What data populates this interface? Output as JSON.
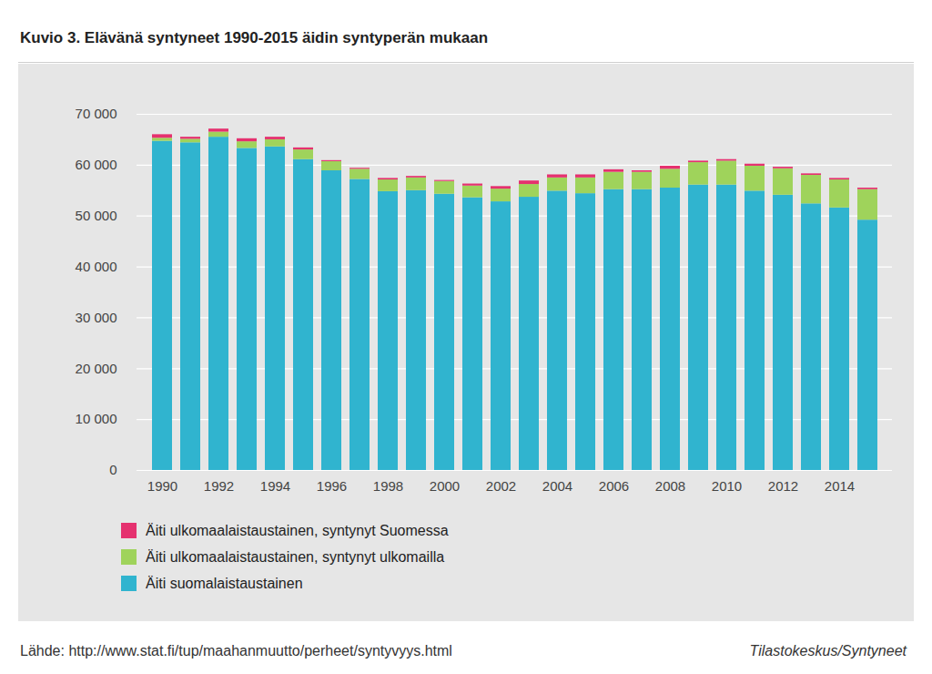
{
  "chart_data": {
    "type": "bar",
    "title": "Kuvio 3. Elävänä syntyneet 1990-2015 äidin syntyperän mukaan",
    "categories": [
      "1990",
      null,
      "1992",
      null,
      "1994",
      null,
      "1996",
      null,
      "1998",
      null,
      "2000",
      null,
      "2002",
      null,
      "2004",
      null,
      "2006",
      null,
      "2008",
      null,
      "2010",
      null,
      "2012",
      null,
      "2014",
      null
    ],
    "series": [
      {
        "name": "Äiti ulkomaalaistaustainen, syntynyt Suomessa",
        "color": "#e5316f",
        "values": [
          700,
          400,
          600,
          600,
          500,
          400,
          200,
          200,
          300,
          300,
          200,
          400,
          500,
          700,
          600,
          600,
          500,
          300,
          600,
          300,
          300,
          400,
          300,
          300,
          300,
          300
        ]
      },
      {
        "name": "Äiti ulkomaalaistaustainen, syntynyt ulkomailla",
        "color": "#9fd35b",
        "values": [
          600,
          700,
          1000,
          1300,
          1400,
          1900,
          1800,
          2000,
          2300,
          2500,
          2500,
          2300,
          2500,
          2500,
          2600,
          3100,
          3400,
          3400,
          3700,
          4400,
          4700,
          4900,
          5200,
          5600,
          5500,
          6000
        ]
      },
      {
        "name": "Äiti suomalaistaustainen",
        "color": "#30b4cf",
        "values": [
          64700,
          64400,
          65500,
          63300,
          63600,
          61100,
          58900,
          57200,
          54800,
          55000,
          54300,
          53600,
          52800,
          53700,
          54900,
          54400,
          55200,
          55200,
          55500,
          56100,
          56100,
          54900,
          54100,
          52400,
          51600,
          49200
        ]
      }
    ],
    "ylim": [
      0,
      70000
    ],
    "yticks": [
      0,
      {
        "value": 10000,
        "label": "10 000"
      },
      {
        "value": 20000,
        "label": "20 000"
      },
      {
        "value": 30000,
        "label": "30 000"
      },
      {
        "value": 40000,
        "label": "40 000"
      },
      {
        "value": 50000,
        "label": "50 000"
      },
      {
        "value": 60000,
        "label": "60 000"
      },
      {
        "value": 70000,
        "label": "70 000"
      }
    ],
    "stacked": true,
    "grid": true,
    "legend": "bottom",
    "source": "Lähde: http://www.stat.fi/tup/maahanmuutto/perheet/syntyvyys.html",
    "credit": "Tilastokeskus/Syntyneet"
  }
}
